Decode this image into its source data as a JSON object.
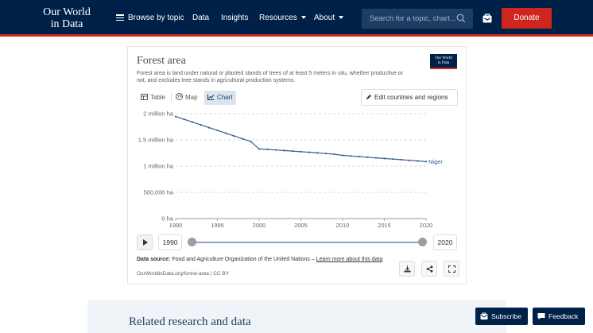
{
  "nav": {
    "logo_line1": "Our World",
    "logo_line2": "in Data",
    "browse": "Browse by topic",
    "data": "Data",
    "insights": "Insights",
    "resources": "Resources",
    "about": "About",
    "search_placeholder": "Search for a topic, chart...",
    "donate": "Donate"
  },
  "card": {
    "title": "Forest area",
    "subtitle": "Forest area is land under natural or planted stands of trees of at least 5 meters in situ, whether productive or not, and excludes tree stands in agricultural production systems.",
    "badge_line1": "Our World",
    "badge_line2": "in Data",
    "tabs": {
      "table": "Table",
      "map": "Map",
      "chart": "Chart"
    },
    "edit": "Edit countries and regions",
    "timeline": {
      "start": "1990",
      "end": "2020"
    },
    "source_label": "Data source:",
    "source_text": "Food and Agriculture Organization of the United Nations –",
    "source_link": "Learn more about this data",
    "url": "OurWorldinData.org/forest-area | CC BY"
  },
  "chart_data": {
    "type": "line",
    "title": "Forest area",
    "xlabel": "",
    "ylabel": "",
    "xlim": [
      1990,
      2020
    ],
    "ylim": [
      0,
      2000000
    ],
    "x_ticks": [
      "1990",
      "1995",
      "2000",
      "2005",
      "2010",
      "2015",
      "2020"
    ],
    "y_ticks": [
      {
        "value": 0,
        "label": "0 ha"
      },
      {
        "value": 500000,
        "label": "500,000 ha"
      },
      {
        "value": 1000000,
        "label": "1 million ha"
      },
      {
        "value": 1500000,
        "label": "1.5 million ha"
      },
      {
        "value": 2000000,
        "label": "2 million ha"
      }
    ],
    "grid": true,
    "series": [
      {
        "name": "Niger",
        "color": "#3a5c8f",
        "x": [
          1990,
          1991,
          1992,
          1993,
          1994,
          1995,
          1996,
          1997,
          1998,
          1999,
          2000,
          2001,
          2002,
          2003,
          2004,
          2005,
          2006,
          2007,
          2008,
          2009,
          2010,
          2011,
          2012,
          2013,
          2014,
          2015,
          2016,
          2017,
          2018,
          2019,
          2020
        ],
        "values": [
          1945000,
          1892000,
          1839000,
          1786000,
          1733000,
          1680000,
          1627000,
          1574000,
          1521000,
          1468000,
          1328000,
          1318000,
          1308000,
          1297000,
          1286000,
          1275000,
          1264000,
          1252000,
          1240000,
          1228000,
          1204000,
          1193000,
          1182000,
          1170000,
          1158000,
          1146000,
          1134000,
          1122000,
          1110000,
          1098000,
          1086000
        ]
      }
    ]
  },
  "related": {
    "title": "Related research and data"
  },
  "floating": {
    "subscribe": "Subscribe",
    "feedback": "Feedback"
  }
}
